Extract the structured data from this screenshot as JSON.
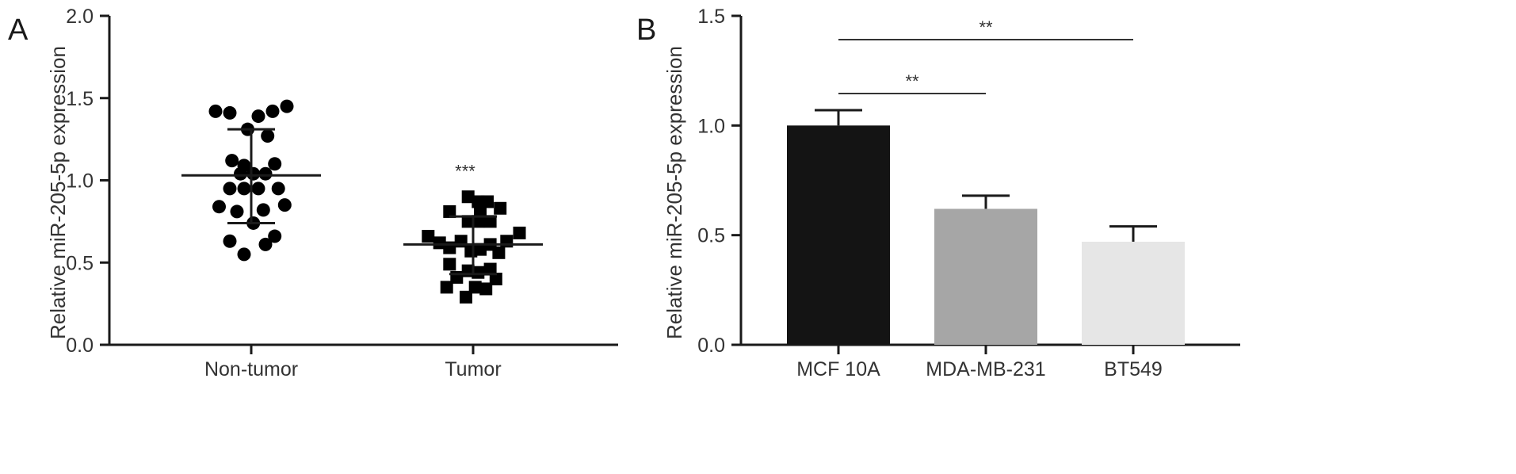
{
  "chart_data": [
    {
      "panel": "A",
      "type": "scatter",
      "ylabel": "Relative miR-205-5p expression",
      "ylim": [
        0,
        2.0
      ],
      "yticks": [
        "0.0",
        "0.5",
        "1.0",
        "1.5",
        "2.0"
      ],
      "categories": [
        "Non-tumor",
        "Tumor"
      ],
      "marker_colors": {
        "Non-tumor": "#000000",
        "Tumor": "#000000"
      },
      "groups": [
        {
          "name": "Non-tumor",
          "marker": "circle",
          "mean": 1.03,
          "sd_low": 0.74,
          "sd_high": 1.31,
          "points": [
            {
              "offset": -0.5,
              "y": 1.42
            },
            {
              "offset": -0.3,
              "y": 1.41
            },
            {
              "offset": 0.1,
              "y": 1.39
            },
            {
              "offset": 0.3,
              "y": 1.42
            },
            {
              "offset": 0.5,
              "y": 1.45
            },
            {
              "offset": -0.05,
              "y": 1.31
            },
            {
              "offset": 0.23,
              "y": 1.27
            },
            {
              "offset": -0.27,
              "y": 1.12
            },
            {
              "offset": -0.1,
              "y": 1.09
            },
            {
              "offset": 0.33,
              "y": 1.1
            },
            {
              "offset": -0.15,
              "y": 1.04
            },
            {
              "offset": 0.03,
              "y": 1.04
            },
            {
              "offset": 0.2,
              "y": 1.04
            },
            {
              "offset": -0.3,
              "y": 0.95
            },
            {
              "offset": -0.1,
              "y": 0.95
            },
            {
              "offset": 0.1,
              "y": 0.95
            },
            {
              "offset": 0.38,
              "y": 0.95
            },
            {
              "offset": -0.45,
              "y": 0.84
            },
            {
              "offset": -0.2,
              "y": 0.81
            },
            {
              "offset": 0.17,
              "y": 0.82
            },
            {
              "offset": 0.47,
              "y": 0.85
            },
            {
              "offset": -0.3,
              "y": 0.63
            },
            {
              "offset": 0.03,
              "y": 0.74
            },
            {
              "offset": 0.33,
              "y": 0.66
            },
            {
              "offset": -0.1,
              "y": 0.55
            },
            {
              "offset": 0.2,
              "y": 0.61
            }
          ]
        },
        {
          "name": "Tumor",
          "marker": "square",
          "mean": 0.61,
          "sd_low": 0.43,
          "sd_high": 0.78,
          "annotation": "***",
          "points": [
            {
              "offset": -0.07,
              "y": 0.9
            },
            {
              "offset": 0.07,
              "y": 0.87
            },
            {
              "offset": 0.2,
              "y": 0.87
            },
            {
              "offset": -0.33,
              "y": 0.81
            },
            {
              "offset": 0.1,
              "y": 0.8
            },
            {
              "offset": 0.38,
              "y": 0.83
            },
            {
              "offset": -0.07,
              "y": 0.75
            },
            {
              "offset": 0.07,
              "y": 0.75
            },
            {
              "offset": 0.24,
              "y": 0.75
            },
            {
              "offset": -0.63,
              "y": 0.66
            },
            {
              "offset": -0.47,
              "y": 0.62
            },
            {
              "offset": -0.17,
              "y": 0.63
            },
            {
              "offset": 0.24,
              "y": 0.61
            },
            {
              "offset": 0.47,
              "y": 0.63
            },
            {
              "offset": 0.65,
              "y": 0.68
            },
            {
              "offset": -0.33,
              "y": 0.59
            },
            {
              "offset": -0.03,
              "y": 0.57
            },
            {
              "offset": 0.1,
              "y": 0.58
            },
            {
              "offset": 0.36,
              "y": 0.56
            },
            {
              "offset": -0.33,
              "y": 0.49
            },
            {
              "offset": -0.07,
              "y": 0.45
            },
            {
              "offset": 0.07,
              "y": 0.44
            },
            {
              "offset": 0.24,
              "y": 0.46
            },
            {
              "offset": -0.23,
              "y": 0.41
            },
            {
              "offset": 0.32,
              "y": 0.4
            },
            {
              "offset": -0.37,
              "y": 0.35
            },
            {
              "offset": 0.03,
              "y": 0.35
            },
            {
              "offset": 0.18,
              "y": 0.34
            },
            {
              "offset": -0.1,
              "y": 0.29
            }
          ]
        }
      ]
    },
    {
      "panel": "B",
      "type": "bar",
      "ylabel": "Relative miR-205-5p expression",
      "ylim": [
        0,
        1.5
      ],
      "yticks": [
        "0.0",
        "0.5",
        "1.0",
        "1.5"
      ],
      "categories": [
        "MCF 10A",
        "MDA-MB-231",
        "BT549"
      ],
      "values": [
        1.0,
        0.62,
        0.47
      ],
      "errors": [
        0.07,
        0.06,
        0.07
      ],
      "bar_colors": [
        "#141414",
        "#a6a6a6",
        "#e6e6e6"
      ],
      "significance": [
        {
          "from": "MCF 10A",
          "to": "MDA-MB-231",
          "label": "**"
        },
        {
          "from": "MCF 10A",
          "to": "BT549",
          "label": "**"
        }
      ]
    }
  ]
}
